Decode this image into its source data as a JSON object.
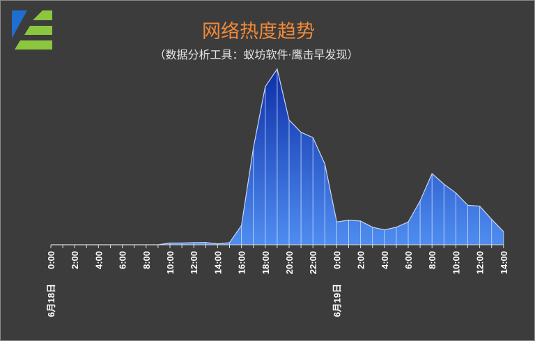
{
  "chart_data": {
    "type": "area",
    "title": "网络热度趋势",
    "subtitle": "（数据分析工具：蚁坊软件·鹰击早发现）",
    "x": [
      "0:00",
      "1:00",
      "2:00",
      "3:00",
      "4:00",
      "5:00",
      "6:00",
      "7:00",
      "8:00",
      "9:00",
      "10:00",
      "11:00",
      "12:00",
      "13:00",
      "14:00",
      "15:00",
      "16:00",
      "17:00",
      "18:00",
      "19:00",
      "20:00",
      "21:00",
      "22:00",
      "23:00",
      "0:00",
      "1:00",
      "2:00",
      "3:00",
      "4:00",
      "5:00",
      "6:00",
      "7:00",
      "8:00",
      "9:00",
      "10:00",
      "11:00",
      "12:00",
      "13:00",
      "14:00"
    ],
    "values": [
      0,
      0,
      0,
      0,
      0,
      0,
      0,
      0,
      0,
      0,
      1,
      1,
      1.2,
      1.3,
      0.5,
      1.2,
      11,
      55,
      90,
      100,
      71,
      64,
      61,
      46,
      13,
      14,
      13.5,
      10,
      8.5,
      10,
      13,
      25,
      40.5,
      34.5,
      29.5,
      22.5,
      22,
      14.5,
      7.5
    ],
    "xtick_labels": [
      "0:00",
      "2:00",
      "4:00",
      "6:00",
      "8:00",
      "10:00",
      "12:00",
      "14:00",
      "16:00",
      "18:00",
      "20:00",
      "22:00",
      "0:00",
      "2:00",
      "4:00",
      "6:00",
      "8:00",
      "10:00",
      "12:00",
      "14:00"
    ],
    "date_labels": [
      "6月18日",
      "6月19日"
    ],
    "ylim": [
      0,
      100
    ],
    "grid": false,
    "colors": {
      "fill_top": "#0d2fa8",
      "fill_bottom": "#4f8df0",
      "line": "#c8d6f5",
      "dropline": "#dbe6ff"
    }
  },
  "logo": {
    "name": "eefung-logo",
    "color_blue": "#1e6fcf",
    "color_green": "#8cc63f"
  }
}
